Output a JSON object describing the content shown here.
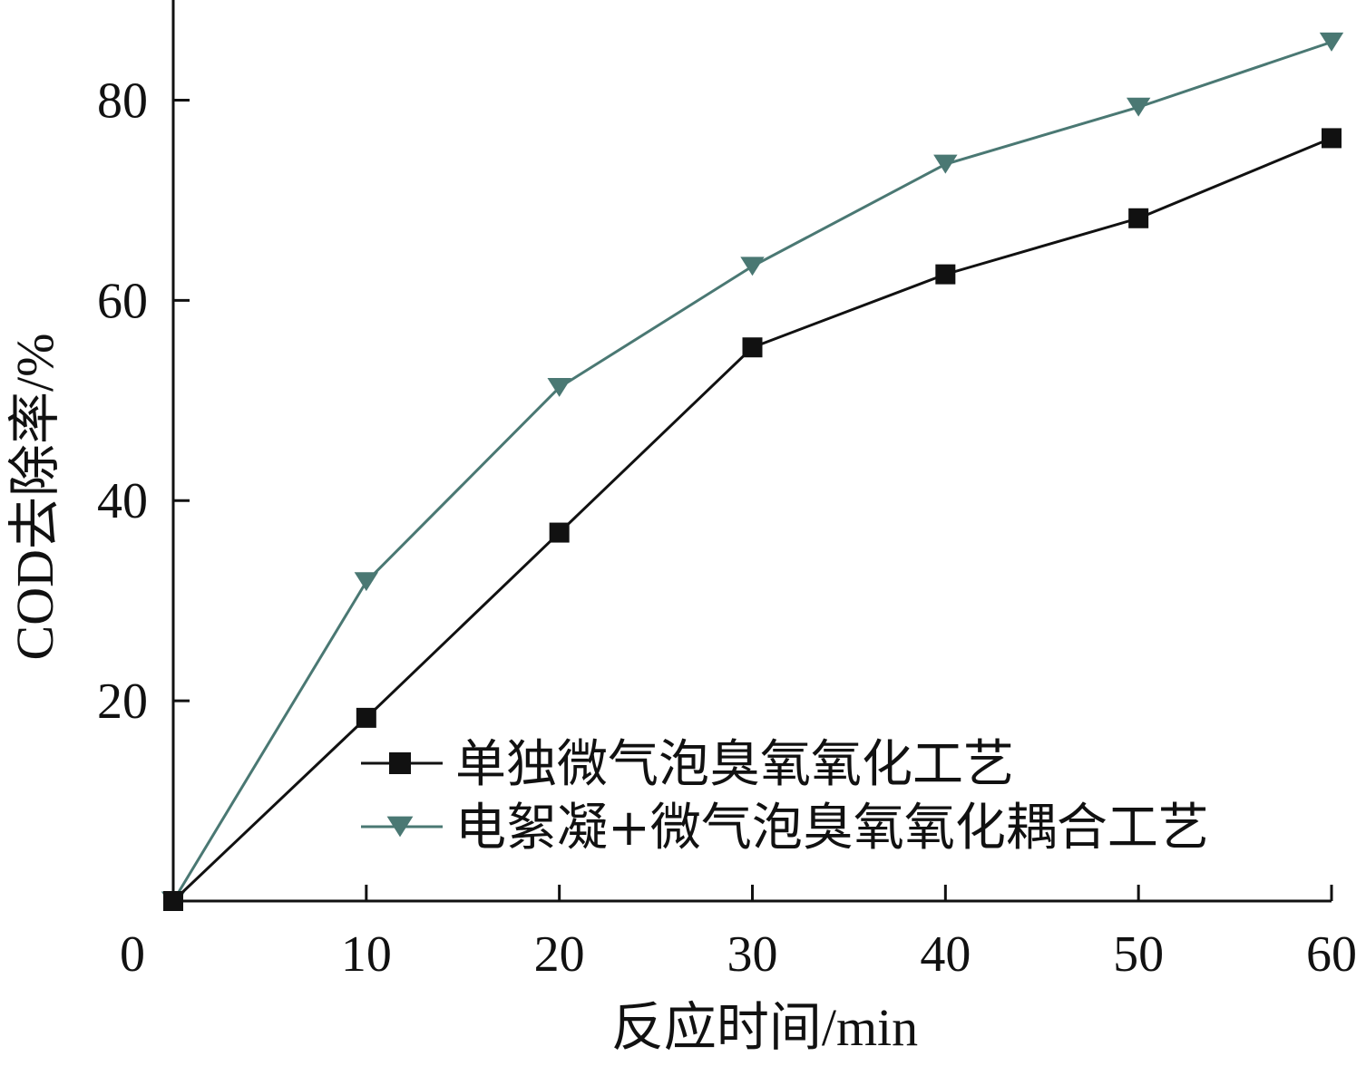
{
  "chart_data": {
    "type": "line",
    "title": "",
    "xlabel": "反应时间/min",
    "ylabel": "COD去除率/%",
    "xlim": [
      0,
      60
    ],
    "ylim": [
      0,
      90
    ],
    "x_ticks": [
      0,
      10,
      20,
      30,
      40,
      50,
      60
    ],
    "x_tick_labels": [
      "0",
      "10",
      "20",
      "30",
      "40",
      "50",
      "60"
    ],
    "y_ticks": [
      20,
      40,
      60,
      80
    ],
    "y_tick_labels": [
      "20",
      "40",
      "60",
      "80"
    ],
    "grid": false,
    "legend_position": "bottom-right",
    "series": [
      {
        "name": "单独微气泡臭氧氧化工艺",
        "color": "#111111",
        "marker": "square",
        "x": [
          0,
          10,
          20,
          30,
          40,
          50,
          60
        ],
        "y": [
          0,
          18.3,
          36.8,
          55.3,
          62.6,
          68.2,
          76.2
        ]
      },
      {
        "name": "电絮凝+微气泡臭氧氧化耦合工艺",
        "color": "#4a7873",
        "marker": "triangle-down",
        "x": [
          0,
          10,
          20,
          30,
          40,
          50,
          60
        ],
        "y": [
          0,
          31.9,
          51.3,
          63.4,
          73.6,
          79.3,
          85.8
        ]
      }
    ]
  }
}
